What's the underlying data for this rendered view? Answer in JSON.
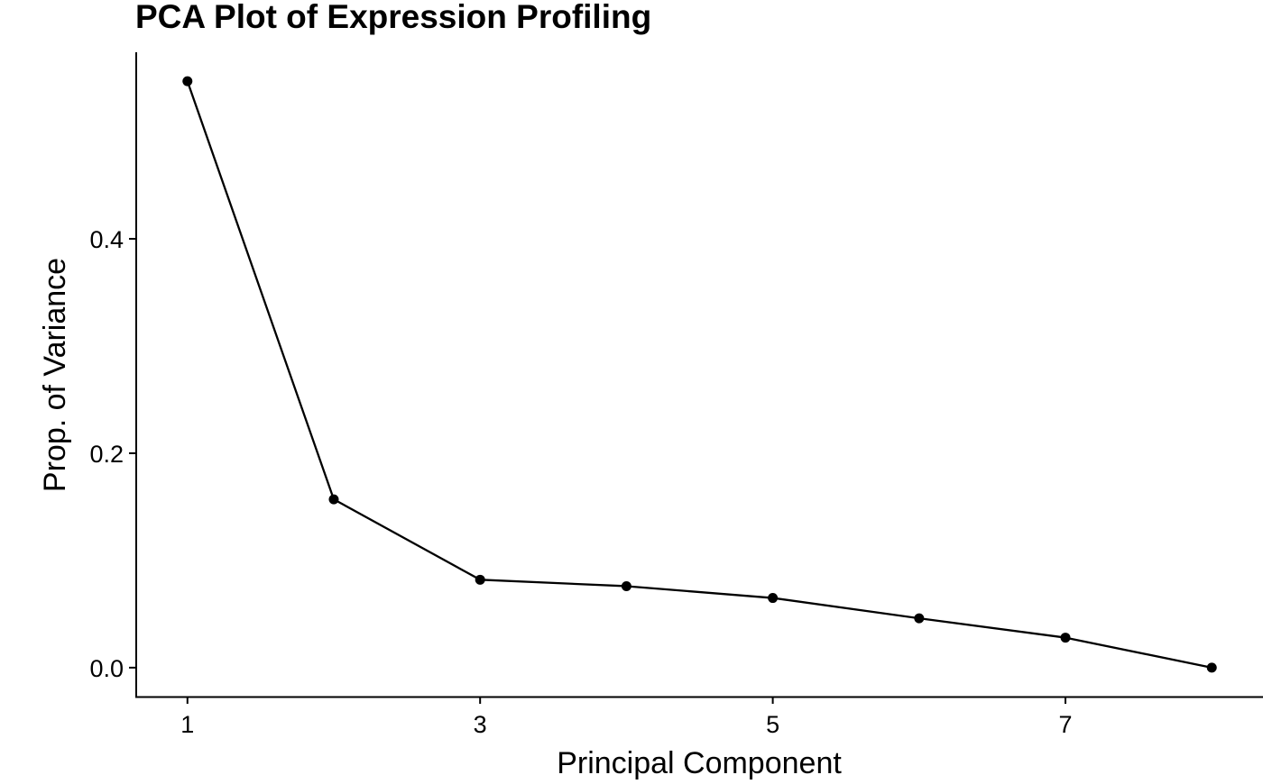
{
  "chart_data": {
    "type": "line",
    "title": "PCA Plot of Expression Profiling",
    "xlabel": "Principal Component",
    "ylabel": "Prop. of Variance",
    "x": [
      1,
      2,
      3,
      4,
      5,
      6,
      7,
      8
    ],
    "series": [
      {
        "values": [
          0.547,
          0.157,
          0.082,
          0.076,
          0.065,
          0.046,
          0.028,
          0.0
        ]
      }
    ],
    "xlim": [
      0.65,
      8.35
    ],
    "ylim": [
      -0.027,
      0.574
    ],
    "xticks": [
      1,
      3,
      5,
      7
    ],
    "xtick_labels": [
      "1",
      "3",
      "5",
      "7"
    ],
    "yticks": [
      0.0,
      0.2,
      0.4
    ],
    "ytick_labels": [
      "0.0",
      "0.2",
      "0.4"
    ],
    "grid": false,
    "legend": "none",
    "markers": true,
    "color": "#000000"
  }
}
